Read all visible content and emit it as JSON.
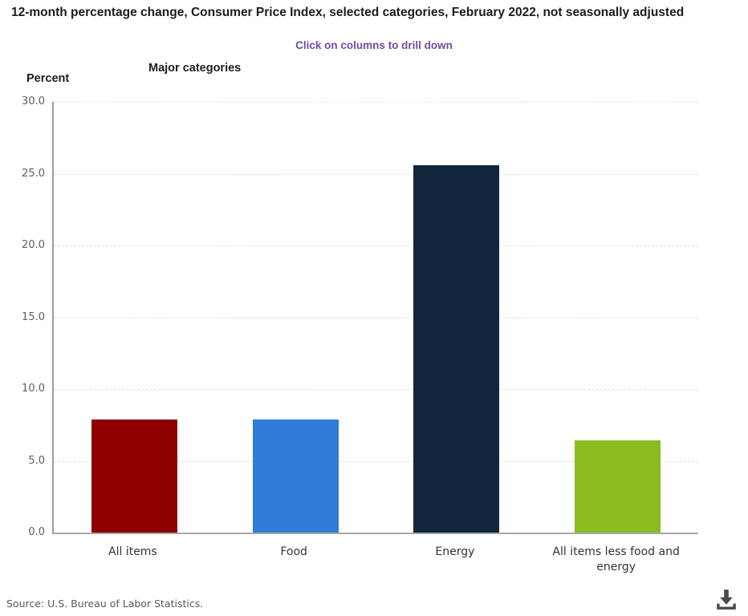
{
  "page": {
    "title": "12-month percentage change, Consumer Price Index, selected categories, February 2022, not seasonally adjusted",
    "drilldown_hint": "Click on columns to drill down",
    "source": "Source: U.S. Bureau of Labor Statistics.",
    "download_icon": "download-icon"
  },
  "colors": {
    "hint_purple": "#6f4ea0",
    "title_text": "#1c1c1c",
    "axis_label_gray": "#5e5e5e",
    "category_label_gray": "#333333",
    "source_gray": "#58595b",
    "download_icon_gray": "#4a4a4c"
  },
  "chart_data": {
    "type": "bar",
    "title": "12-month percentage change, Consumer Price Index, selected categories, February 2022, not seasonally adjusted",
    "subtitle": "Click on columns to drill down",
    "xlabel": "Major categories",
    "ylabel": "Percent",
    "categories": [
      "All items",
      "Food",
      "Energy",
      "All items less food and energy"
    ],
    "values": [
      7.9,
      7.9,
      25.6,
      6.4
    ],
    "bar_colors": [
      "#8e0000",
      "#2f7dd8",
      "#12263e",
      "#8bbc21"
    ],
    "ylim": [
      0,
      30
    ],
    "ytick_labels": [
      "0.0",
      "5.0",
      "10.0",
      "15.0",
      "20.0",
      "25.0",
      "30.0"
    ],
    "grid": "horizontal-dashed",
    "legend": "none"
  }
}
